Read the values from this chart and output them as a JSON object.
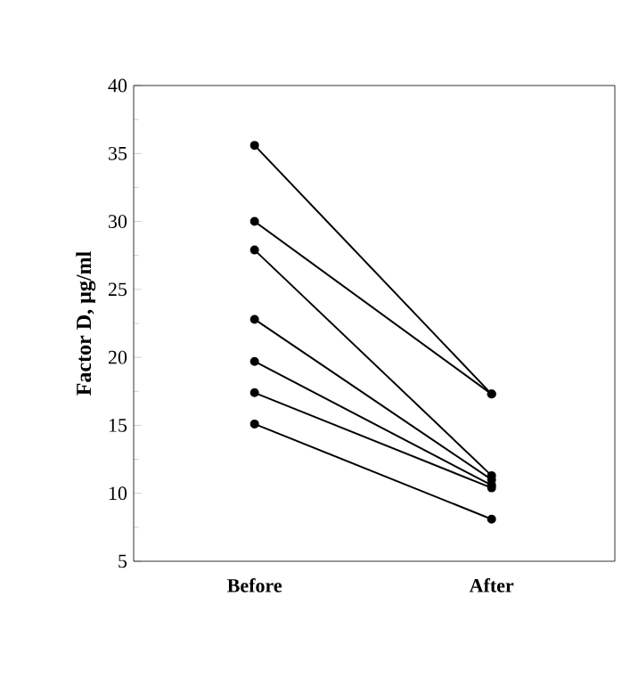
{
  "chart_data": {
    "type": "line",
    "ylabel": "Factor D, µg/ml",
    "categories": [
      "Before",
      "After"
    ],
    "series": [
      {
        "color": "#000000",
        "values": [
          35.6,
          17.3
        ]
      },
      {
        "color": "#000000",
        "values": [
          30.0,
          17.3
        ]
      },
      {
        "color": "#000000",
        "values": [
          27.9,
          11.3
        ]
      },
      {
        "color": "#000000",
        "values": [
          22.8,
          11.0
        ]
      },
      {
        "color": "#000000",
        "values": [
          19.7,
          10.6
        ]
      },
      {
        "color": "#000000",
        "values": [
          17.4,
          10.4
        ]
      },
      {
        "color": "#000000",
        "values": [
          15.1,
          8.1
        ]
      }
    ],
    "ylim": [
      5,
      40
    ],
    "yticks": [
      5,
      10,
      15,
      20,
      25,
      30,
      35,
      40
    ],
    "marker": "circle",
    "line_style": "solid",
    "grid": false
  }
}
